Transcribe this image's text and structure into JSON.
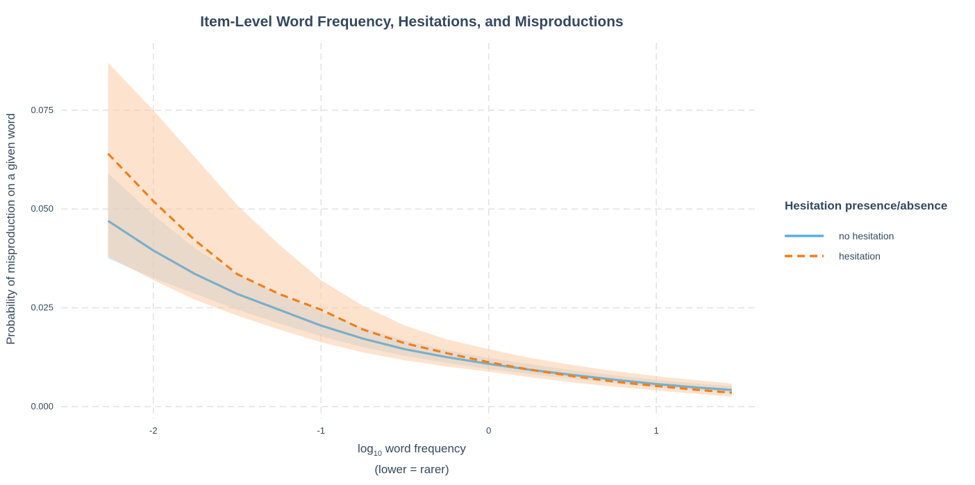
{
  "chart_data": {
    "type": "line",
    "title": "Item-Level Word Frequency, Hesitations, and Misproductions",
    "xlabel_base": "log",
    "xlabel_sub": "10",
    "xlabel_rest": " word frequency",
    "xlabel_line2": "(lower = rarer)",
    "ylabel": "Probability of misproduction on a given word",
    "xlim": [
      -2.55,
      1.6
    ],
    "ylim": [
      -0.003,
      0.092
    ],
    "x_ticks": [
      -2,
      -1,
      0,
      1
    ],
    "x_tick_labels": [
      "-2",
      "-1",
      "0",
      "1"
    ],
    "y_ticks": [
      0.0,
      0.025,
      0.05,
      0.075
    ],
    "y_tick_labels": [
      "0.000",
      "0.025",
      "0.050",
      "0.075"
    ],
    "grid": true,
    "legend_title": "Hesitation presence/absence",
    "legend_position": "right",
    "series": [
      {
        "name": "no hesitation",
        "color": "#7aafc9",
        "legend_color": "#5dade2",
        "band_color": "#aed6f1",
        "dash": "solid",
        "x": [
          -2.27,
          -2.0,
          -1.75,
          -1.5,
          -1.25,
          -1.0,
          -0.75,
          -0.5,
          -0.25,
          0.0,
          0.25,
          0.5,
          0.75,
          1.0,
          1.25,
          1.45
        ],
        "y": [
          0.047,
          0.0395,
          0.0335,
          0.0285,
          0.0245,
          0.0205,
          0.0172,
          0.0145,
          0.0125,
          0.0108,
          0.0093,
          0.008,
          0.0068,
          0.0057,
          0.0048,
          0.0042
        ],
        "lower": [
          0.0375,
          0.0325,
          0.0285,
          0.0245,
          0.021,
          0.0178,
          0.015,
          0.0128,
          0.011,
          0.0095,
          0.0082,
          0.007,
          0.0059,
          0.0049,
          0.0041,
          0.0035
        ],
        "upper": [
          0.059,
          0.0485,
          0.04,
          0.0335,
          0.0285,
          0.024,
          0.02,
          0.0168,
          0.0143,
          0.0123,
          0.0107,
          0.0092,
          0.0079,
          0.0067,
          0.0058,
          0.0052
        ]
      },
      {
        "name": "hesitation",
        "color": "#f07f19",
        "legend_color": "#f07f19",
        "band_color": "#fcc79e",
        "dash": "dashed",
        "x": [
          -2.27,
          -2.0,
          -1.75,
          -1.5,
          -1.25,
          -1.0,
          -0.75,
          -0.5,
          -0.25,
          0.0,
          0.25,
          0.5,
          0.75,
          1.0,
          1.25,
          1.45
        ],
        "y": [
          0.064,
          0.052,
          0.042,
          0.0335,
          0.0285,
          0.0245,
          0.0195,
          0.016,
          0.0135,
          0.0112,
          0.0093,
          0.0077,
          0.0063,
          0.0052,
          0.0042,
          0.0035
        ],
        "lower": [
          0.038,
          0.032,
          0.027,
          0.023,
          0.0195,
          0.0163,
          0.0137,
          0.0117,
          0.0101,
          0.0088,
          0.0074,
          0.0061,
          0.005,
          0.0041,
          0.0032,
          0.0025
        ],
        "upper": [
          0.087,
          0.075,
          0.063,
          0.051,
          0.041,
          0.032,
          0.0255,
          0.0205,
          0.017,
          0.0145,
          0.0123,
          0.0105,
          0.009,
          0.0077,
          0.0066,
          0.0058
        ]
      }
    ]
  }
}
